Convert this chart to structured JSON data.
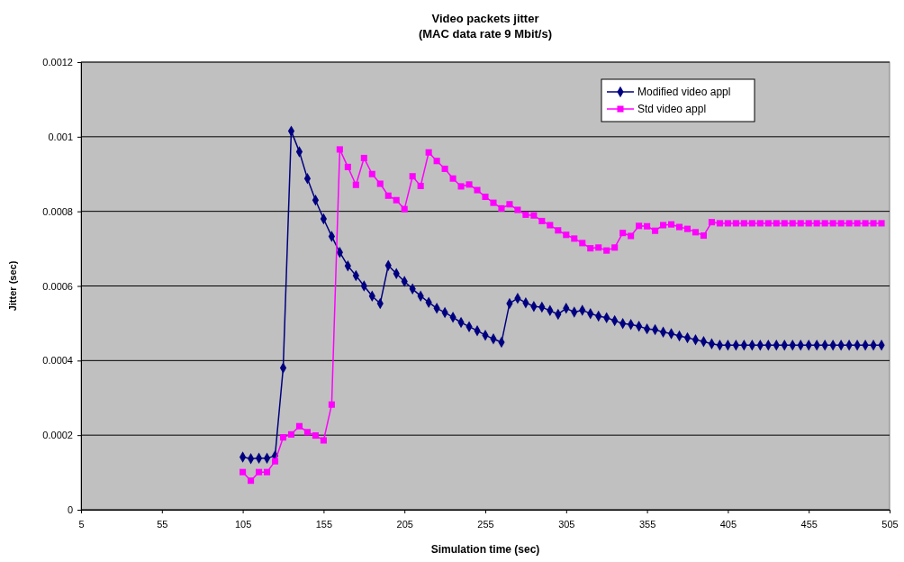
{
  "chart_data": {
    "type": "line",
    "title": "Video packets jitter",
    "subtitle": "(MAC data rate 9 Mbit/s)",
    "xlabel": "Simulation time (sec)",
    "ylabel": "Jitter (sec)",
    "xlim": [
      5,
      505
    ],
    "xticks": [
      5,
      55,
      105,
      155,
      205,
      255,
      305,
      355,
      405,
      455,
      505
    ],
    "ylim": [
      0,
      0.0012
    ],
    "yticks": [
      0,
      0.0002,
      0.0004,
      0.0006,
      0.0008,
      0.001,
      0.0012
    ],
    "grid": "y",
    "legend": "top right",
    "x": [
      105,
      110,
      115,
      120,
      125,
      130,
      135,
      140,
      145,
      150,
      155,
      160,
      165,
      170,
      175,
      180,
      185,
      190,
      195,
      200,
      205,
      210,
      215,
      220,
      225,
      230,
      235,
      240,
      245,
      250,
      255,
      260,
      265,
      270,
      275,
      280,
      285,
      290,
      295,
      300,
      305,
      310,
      315,
      320,
      325,
      330,
      335,
      340,
      345,
      350,
      355,
      360,
      365,
      370,
      375,
      380,
      385,
      390,
      395,
      400,
      405,
      410,
      415,
      420,
      425,
      430,
      435,
      440,
      445,
      450,
      455,
      460,
      465,
      470,
      475,
      480,
      485,
      490,
      495,
      500
    ],
    "series": [
      {
        "name": "Modified video appl",
        "color": "#000080",
        "marker": "diamond",
        "values": [
          0.000141,
          0.000137,
          0.000138,
          0.000138,
          0.000145,
          0.00038,
          0.001015,
          0.00096,
          0.000888,
          0.00083,
          0.00078,
          0.000733,
          0.00069,
          0.000654,
          0.000628,
          0.0006,
          0.000573,
          0.000553,
          0.000655,
          0.000633,
          0.000612,
          0.000592,
          0.000573,
          0.000556,
          0.00054,
          0.000529,
          0.000516,
          0.000502,
          0.000491,
          0.00048,
          0.000468,
          0.000458,
          0.000449,
          0.000553,
          0.000567,
          0.000555,
          0.000545,
          0.000543,
          0.000534,
          0.000524,
          0.00054,
          0.00053,
          0.000535,
          0.000526,
          0.000519,
          0.000515,
          0.000507,
          0.000499,
          0.000497,
          0.000492,
          0.000485,
          0.000483,
          0.000476,
          0.000472,
          0.000466,
          0.000461,
          0.000456,
          0.000451,
          0.000445,
          0.000441,
          0.000441,
          0.000441,
          0.000441,
          0.000441,
          0.000441,
          0.000441,
          0.000441,
          0.000441,
          0.000441,
          0.000441,
          0.000441,
          0.000441,
          0.000441,
          0.000441,
          0.000441,
          0.000441,
          0.000441,
          0.000441,
          0.000441,
          0.000441
        ]
      },
      {
        "name": "Std video appl",
        "color": "#ff00ff",
        "marker": "square",
        "values": [
          0.000101,
          7.8e-05,
          0.000101,
          0.000101,
          0.00013,
          0.000194,
          0.000202,
          0.000224,
          0.000208,
          0.000199,
          0.000186,
          0.000282,
          0.000966,
          0.000919,
          0.000871,
          0.000943,
          0.0009,
          0.000874,
          0.000842,
          0.00083,
          0.000806,
          0.000894,
          0.000868,
          0.000958,
          0.000935,
          0.000914,
          0.000888,
          0.000867,
          0.000872,
          0.000857,
          0.000839,
          0.000823,
          0.000808,
          0.000819,
          0.000804,
          0.000791,
          0.000789,
          0.000774,
          0.000763,
          0.000749,
          0.000737,
          0.000727,
          0.000715,
          0.000701,
          0.000703,
          0.000695,
          0.000703,
          0.000742,
          0.000734,
          0.000761,
          0.00076,
          0.000748,
          0.000763,
          0.000765,
          0.000758,
          0.000753,
          0.000744,
          0.000735,
          0.000771,
          0.000768,
          0.000768,
          0.000768,
          0.000768,
          0.000768,
          0.000768,
          0.000768,
          0.000768,
          0.000768,
          0.000768,
          0.000768,
          0.000768,
          0.000768,
          0.000768,
          0.000768,
          0.000768,
          0.000768,
          0.000768,
          0.000768,
          0.000768,
          0.000768
        ]
      }
    ]
  }
}
